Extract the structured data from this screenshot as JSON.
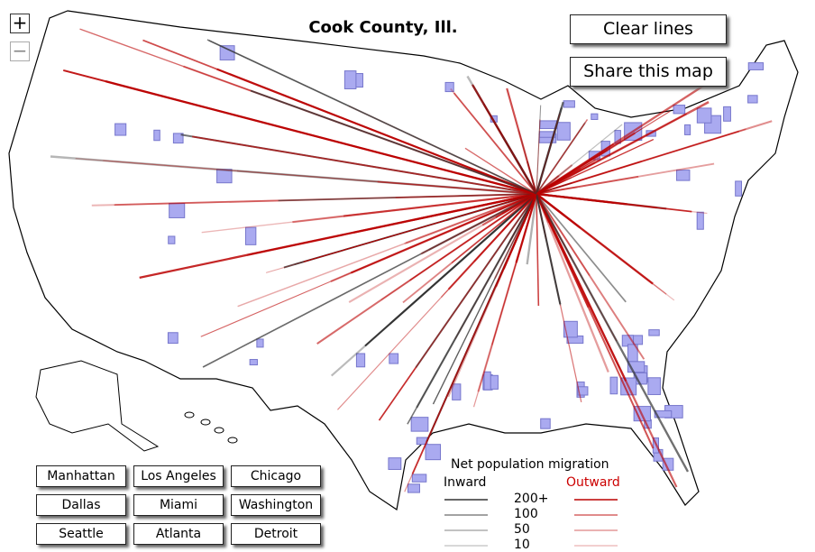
{
  "title": "Cook County, Ill.",
  "zoom": {
    "in": "+",
    "out": "−"
  },
  "buttons": {
    "clear": "Clear lines",
    "share": "Share this map"
  },
  "cities": [
    "Manhattan",
    "Los Angeles",
    "Chicago",
    "Dallas",
    "Miami",
    "Washington",
    "Seattle",
    "Atlanta",
    "Detroit"
  ],
  "legend": {
    "title": "Net population migration",
    "inward": "Inward",
    "outward": "Outward",
    "levels": [
      "200+",
      "100",
      "50",
      "10"
    ]
  }
}
